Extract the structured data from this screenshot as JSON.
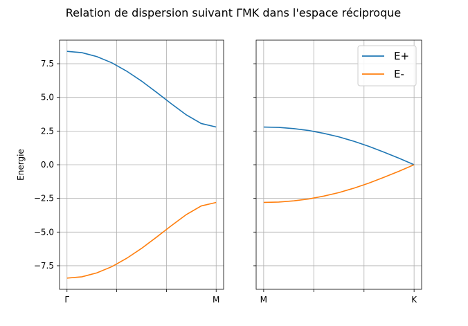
{
  "chart_data": {
    "type": "line",
    "title": "Relation de dispersion suivant ΓMK dans l'espace réciproque",
    "ylabel": "Energie",
    "ylim": [
      -9.25,
      9.25
    ],
    "yticks": [
      7.5,
      5.0,
      2.5,
      0.0,
      -2.5,
      -5.0,
      -7.5
    ],
    "ytick_labels": [
      "7.5",
      "5.0",
      "2.5",
      "0.0",
      "−2.5",
      "−5.0",
      "−7.5"
    ],
    "grid": true,
    "legend_position": "top-right",
    "panels": [
      {
        "xlabel": "",
        "xlim": [
          -0.05,
          1.05
        ],
        "xticks": [
          0,
          0.333,
          0.667,
          1
        ],
        "xtick_labels": [
          "Γ",
          "",
          "",
          "M"
        ],
        "x": [
          0,
          0.1,
          0.2,
          0.3,
          0.4,
          0.5,
          0.6,
          0.7,
          0.8,
          0.9,
          1.0
        ],
        "series": [
          {
            "name": "E+",
            "color": "#1f77b4",
            "values": [
              8.42,
              8.32,
              8.03,
              7.57,
              6.95,
              6.21,
              5.38,
              4.52,
              3.7,
              3.06,
              2.8
            ]
          },
          {
            "name": "E-",
            "color": "#ff7f0e",
            "values": [
              -8.42,
              -8.32,
              -8.03,
              -7.57,
              -6.95,
              -6.21,
              -5.38,
              -4.52,
              -3.7,
              -3.06,
              -2.8
            ]
          }
        ]
      },
      {
        "xlabel": "",
        "xlim": [
          -0.05,
          1.05
        ],
        "xticks": [
          0,
          0.333,
          0.667,
          1
        ],
        "xtick_labels": [
          "M",
          "",
          "",
          "K"
        ],
        "x": [
          0,
          0.1,
          0.2,
          0.3,
          0.4,
          0.5,
          0.6,
          0.7,
          0.8,
          0.9,
          1.0
        ],
        "series": [
          {
            "name": "E+",
            "color": "#1f77b4",
            "values": [
              2.8,
              2.77,
              2.68,
              2.54,
              2.33,
              2.07,
              1.74,
              1.36,
              0.93,
              0.48,
              0.0
            ]
          },
          {
            "name": "E-",
            "color": "#ff7f0e",
            "values": [
              -2.8,
              -2.77,
              -2.68,
              -2.54,
              -2.33,
              -2.07,
              -1.74,
              -1.36,
              -0.93,
              -0.48,
              0.0
            ]
          }
        ]
      }
    ],
    "legend": [
      {
        "label": "E+",
        "color": "#1f77b4"
      },
      {
        "label": "E-",
        "color": "#ff7f0e"
      }
    ]
  }
}
